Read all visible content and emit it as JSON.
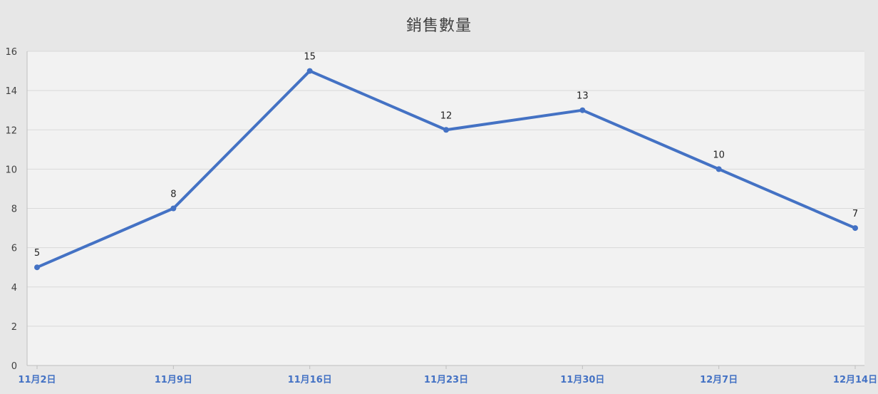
{
  "chart_data": {
    "type": "line",
    "title": "銷售數量",
    "xlabel": "",
    "ylabel": "",
    "categories": [
      "11月2日",
      "11月9日",
      "11月16日",
      "11月23日",
      "11月30日",
      "12月7日",
      "12月14日"
    ],
    "series": [
      {
        "values": [
          5,
          8,
          15,
          12,
          13,
          10,
          7
        ],
        "color": "#4472c4"
      }
    ],
    "ylim": [
      0,
      16
    ],
    "yticks": [
      0,
      2,
      4,
      6,
      8,
      10,
      12,
      14,
      16
    ],
    "ytick_labels": [
      "0",
      "2",
      "4",
      "6",
      "8",
      "10",
      "12",
      "14",
      "16"
    ],
    "grid": "horizontal",
    "data_labels": true,
    "colors": {
      "background": "#e7e7e7",
      "plot_area": "#f2f2f2",
      "gridline": "#d9d9d9",
      "line": "#4472c4",
      "x_tick_text": "#4472c4"
    }
  }
}
